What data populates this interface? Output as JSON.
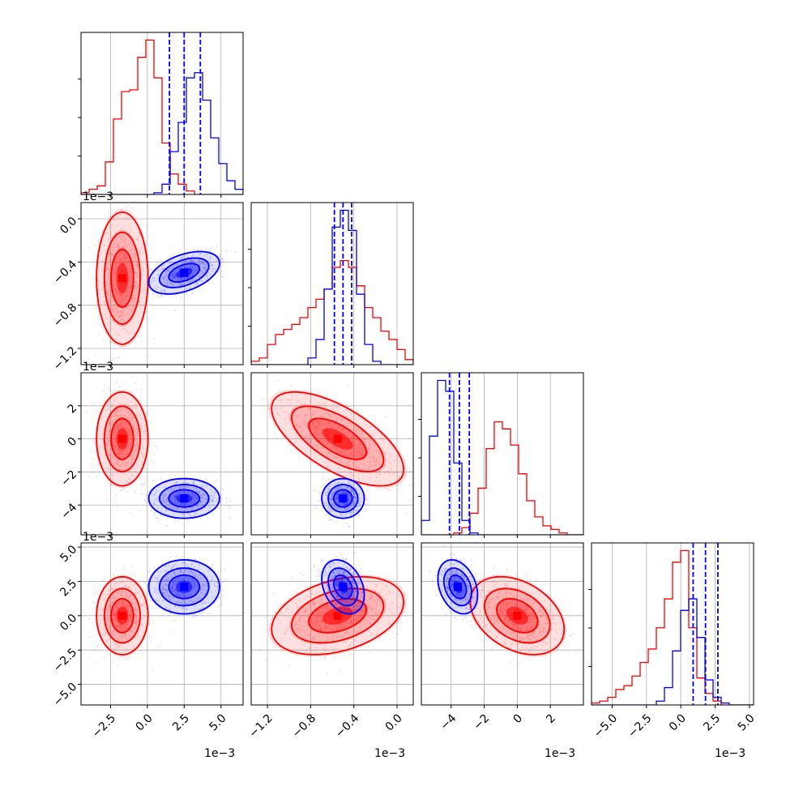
{
  "chart_data": {
    "type": "corner",
    "parameters": 4,
    "grid": true,
    "colors": {
      "series_a": "#ff0000",
      "series_b": "#0000ff"
    },
    "series": [
      {
        "color": "#ff0000",
        "means": [
          -0.0017,
          -0.00055,
          -0.0015,
          0.0007
        ],
        "sds": [
          0.0008,
          0.00028,
          1.3,
          1.3
        ],
        "correlations": {
          "1-0": 0.0,
          "2-0": 0.0,
          "2-1": -0.65,
          "3-0": 0.0,
          "3-1": 0.35,
          "3-2": -0.35
        }
      },
      {
        "color": "#0000ff",
        "means": [
          0.0025,
          -0.0005,
          -3.6,
          2.1
        ],
        "sds": [
          0.0011,
          9e-05,
          0.55,
          0.9
        ],
        "correlations": {
          "1-0": 0.45,
          "2-0": 0.0,
          "2-1": 0.0,
          "3-0": 0.0,
          "3-1": -0.3,
          "3-2": -0.3
        }
      }
    ],
    "quantile_lines": [
      [
        0.0015,
        0.0025,
        0.0036
      ],
      [
        -0.00058,
        -0.0005,
        -0.00042
      ],
      [
        -4.1,
        -3.5,
        -2.9
      ],
      [
        0.9,
        1.8,
        2.7
      ]
    ],
    "axes": [
      {
        "range": [
          -0.0045,
          0.0065
        ],
        "ticks": [
          -0.0025,
          0.0,
          0.0025,
          0.005
        ],
        "tick_labels": [
          "−2.5",
          "0.0",
          "2.5",
          "5.0"
        ],
        "offset_label": "1e−3"
      },
      {
        "range": [
          -0.00135,
          0.00015
        ],
        "ticks": [
          -0.0012,
          -0.0008,
          -0.0004,
          0.0
        ],
        "tick_labels": [
          "−1.2",
          "−0.8",
          "−0.4",
          "0.0"
        ],
        "offset_label": "1e−3"
      },
      {
        "range": [
          -5.8,
          4.0
        ],
        "ticks": [
          -4,
          -2,
          0,
          2
        ],
        "tick_labels": [
          "−4",
          "−2",
          "0",
          "2"
        ],
        "offset_label": "1e−3"
      },
      {
        "range": [
          -6.5,
          5.3
        ],
        "ticks": [
          -5.0,
          -2.5,
          0.0,
          2.5,
          5.0
        ],
        "tick_labels": [
          "−5.0",
          "−2.5",
          "0.0",
          "2.5",
          "5.0"
        ],
        "offset_label": "1e−3"
      }
    ],
    "histograms": [
      {
        "red": [
          1,
          3,
          5,
          19,
          44,
          60,
          61,
          80,
          90,
          68,
          30,
          12,
          6,
          2,
          0,
          0,
          0,
          0,
          0,
          0
        ],
        "blue": [
          0,
          0,
          0,
          0,
          0,
          0,
          0,
          0,
          0,
          1,
          6,
          25,
          42,
          68,
          71,
          55,
          33,
          18,
          8,
          3
        ]
      },
      {
        "red": [
          2,
          4,
          12,
          18,
          21,
          24,
          28,
          34,
          39,
          45,
          58,
          62,
          58,
          47,
          34,
          28,
          20,
          15,
          9,
          3
        ],
        "blue": [
          0,
          0,
          0,
          0,
          0,
          0,
          0,
          4,
          15,
          45,
          82,
          92,
          80,
          42,
          12,
          2,
          0,
          0,
          0,
          0
        ]
      },
      {
        "red": [
          0,
          0,
          0,
          0,
          1,
          4,
          12,
          26,
          48,
          63,
          59,
          50,
          34,
          19,
          10,
          5,
          3,
          1,
          0,
          0
        ],
        "blue": [
          8,
          55,
          86,
          80,
          40,
          8,
          1,
          0,
          0,
          0,
          0,
          0,
          0,
          0,
          0,
          0,
          0,
          0,
          0,
          0
        ]
      },
      {
        "red": [
          1,
          2,
          4,
          8,
          10,
          15,
          22,
          29,
          40,
          55,
          74,
          80,
          40,
          14,
          6,
          2,
          0,
          0,
          0,
          0
        ],
        "blue": [
          0,
          0,
          0,
          0,
          0,
          0,
          0,
          0,
          2,
          9,
          28,
          49,
          55,
          35,
          13,
          4,
          1,
          0,
          0,
          0
        ]
      }
    ]
  }
}
